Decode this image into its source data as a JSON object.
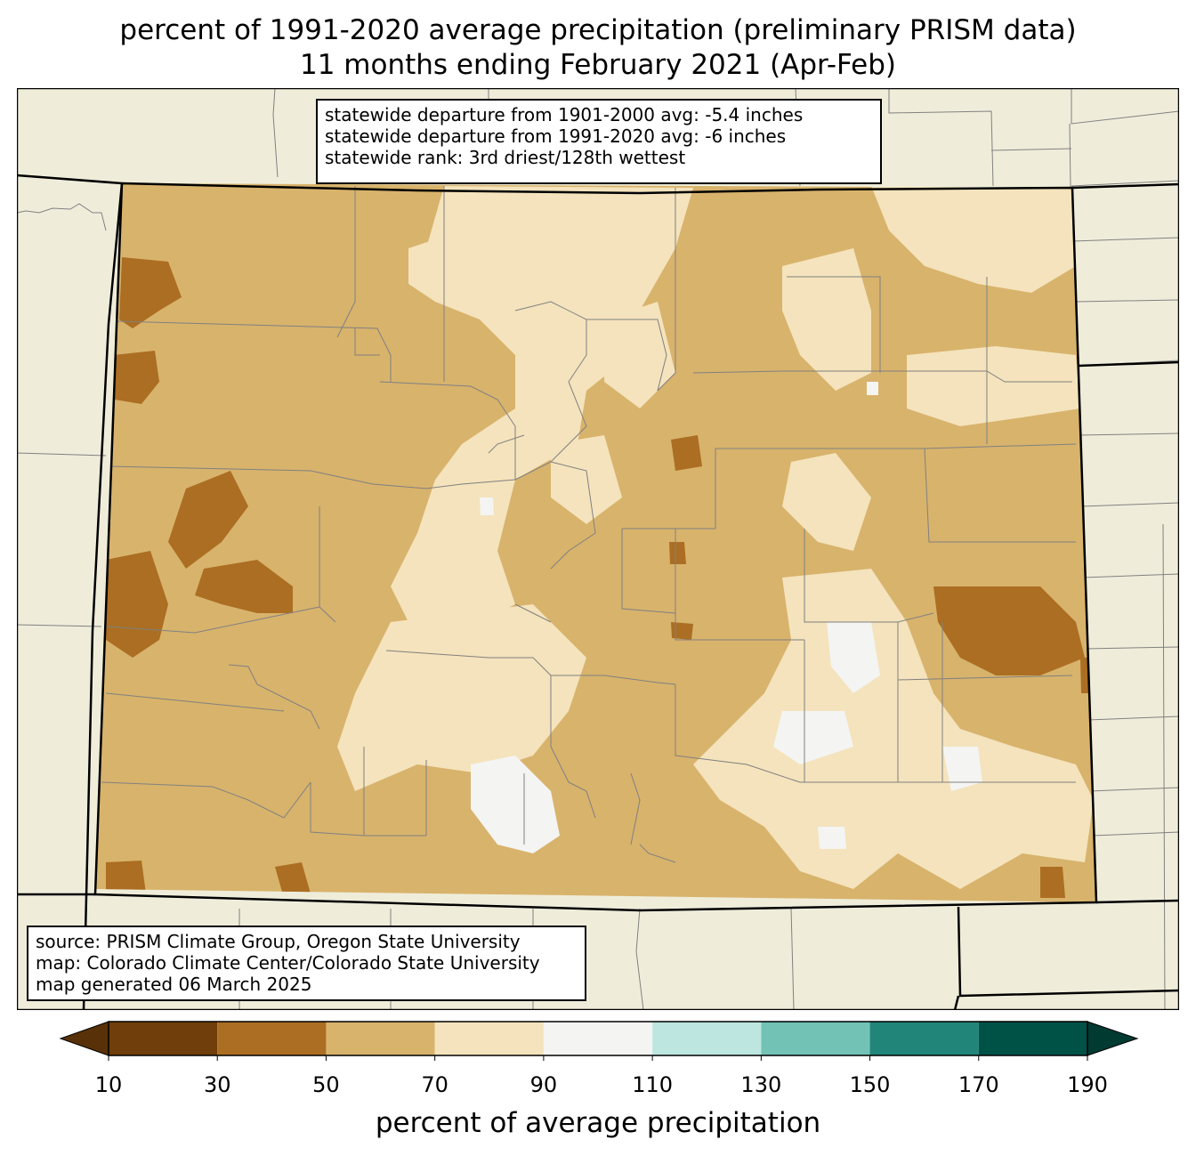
{
  "title": {
    "line1": "percent of 1991-2020 average precipitation (preliminary PRISM data)",
    "line2": "11 months ending February 2021 (Apr-Feb)"
  },
  "stats": {
    "line1": "statewide departure from 1901-2000 avg: -5.4 inches",
    "line2": "statewide departure from 1991-2020 avg: -6 inches",
    "line3": "statewide rank: 3rd driest/128th wettest"
  },
  "source": {
    "line1": "source: PRISM Climate Group, Oregon State University",
    "line2": "map: Colorado Climate Center/Colorado State University",
    "line3": "map generated 06 March 2025"
  },
  "colorbar": {
    "label": "percent of average precipitation",
    "ticks": [
      "10",
      "30",
      "50",
      "70",
      "90",
      "110",
      "130",
      "150",
      "170",
      "190"
    ],
    "bins": [
      {
        "min": 10,
        "max": 30,
        "color": "#6f3e0a"
      },
      {
        "min": 30,
        "max": 50,
        "color": "#ab6e22"
      },
      {
        "min": 50,
        "max": 70,
        "color": "#d8b36c"
      },
      {
        "min": 70,
        "max": 90,
        "color": "#f4e3bc"
      },
      {
        "min": 90,
        "max": 110,
        "color": "#f4f4f2"
      },
      {
        "min": 110,
        "max": 130,
        "color": "#bde6e1"
      },
      {
        "min": 130,
        "max": 150,
        "color": "#72c2b5"
      },
      {
        "min": 150,
        "max": 170,
        "color": "#218579"
      },
      {
        "min": 170,
        "max": 190,
        "color": "#005247"
      }
    ],
    "under_color": "#593109",
    "over_color": "#003a31"
  },
  "colors": {
    "land_background": "#efedda",
    "boundary": "#000000",
    "county_lines": "#808080"
  }
}
